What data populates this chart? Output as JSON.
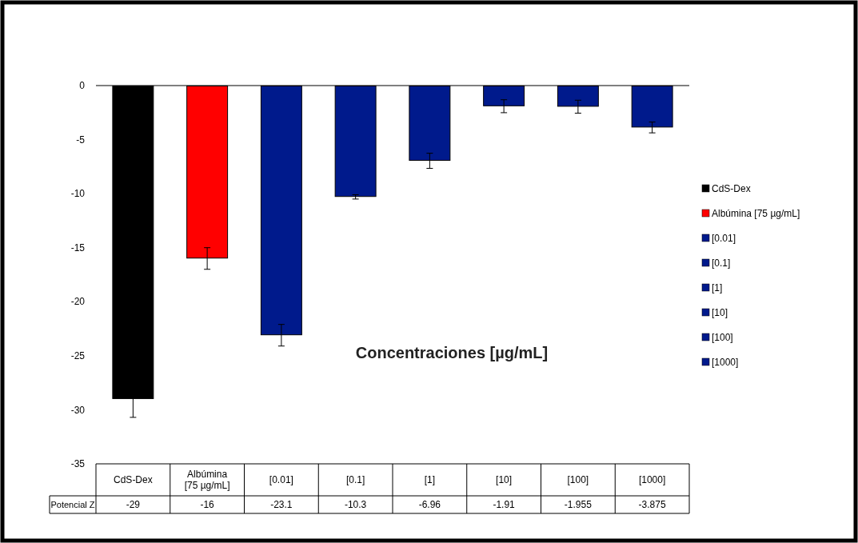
{
  "chart_data": {
    "type": "bar",
    "xlabel": "Concentraciones [µg/mL]",
    "categories": [
      "CdS-Dex",
      "Albúmina [75 µg/mL]",
      "[0.01]",
      "[0.1]",
      "[1]",
      "[10]",
      "[100]",
      "[1000]"
    ],
    "series": [
      {
        "colors": [
          "#000000",
          "#ff0000",
          "#001a8c",
          "#001a8c",
          "#001a8c",
          "#001a8c",
          "#001a8c",
          "#001a8c"
        ],
        "values": [
          -29,
          -16,
          -23.1,
          -10.3,
          -6.96,
          -1.91,
          -1.955,
          -3.875
        ],
        "errors": [
          1.7,
          1.0,
          1.0,
          0.2,
          0.7,
          0.6,
          0.6,
          0.5
        ]
      }
    ],
    "annotations": [
      "Potencial Z"
    ],
    "ylim": [
      -35,
      0
    ],
    "yticks": [
      -35,
      -30,
      -25,
      -20,
      -15,
      -10,
      -5,
      0
    ],
    "grid": false,
    "data_labels": true
  }
}
